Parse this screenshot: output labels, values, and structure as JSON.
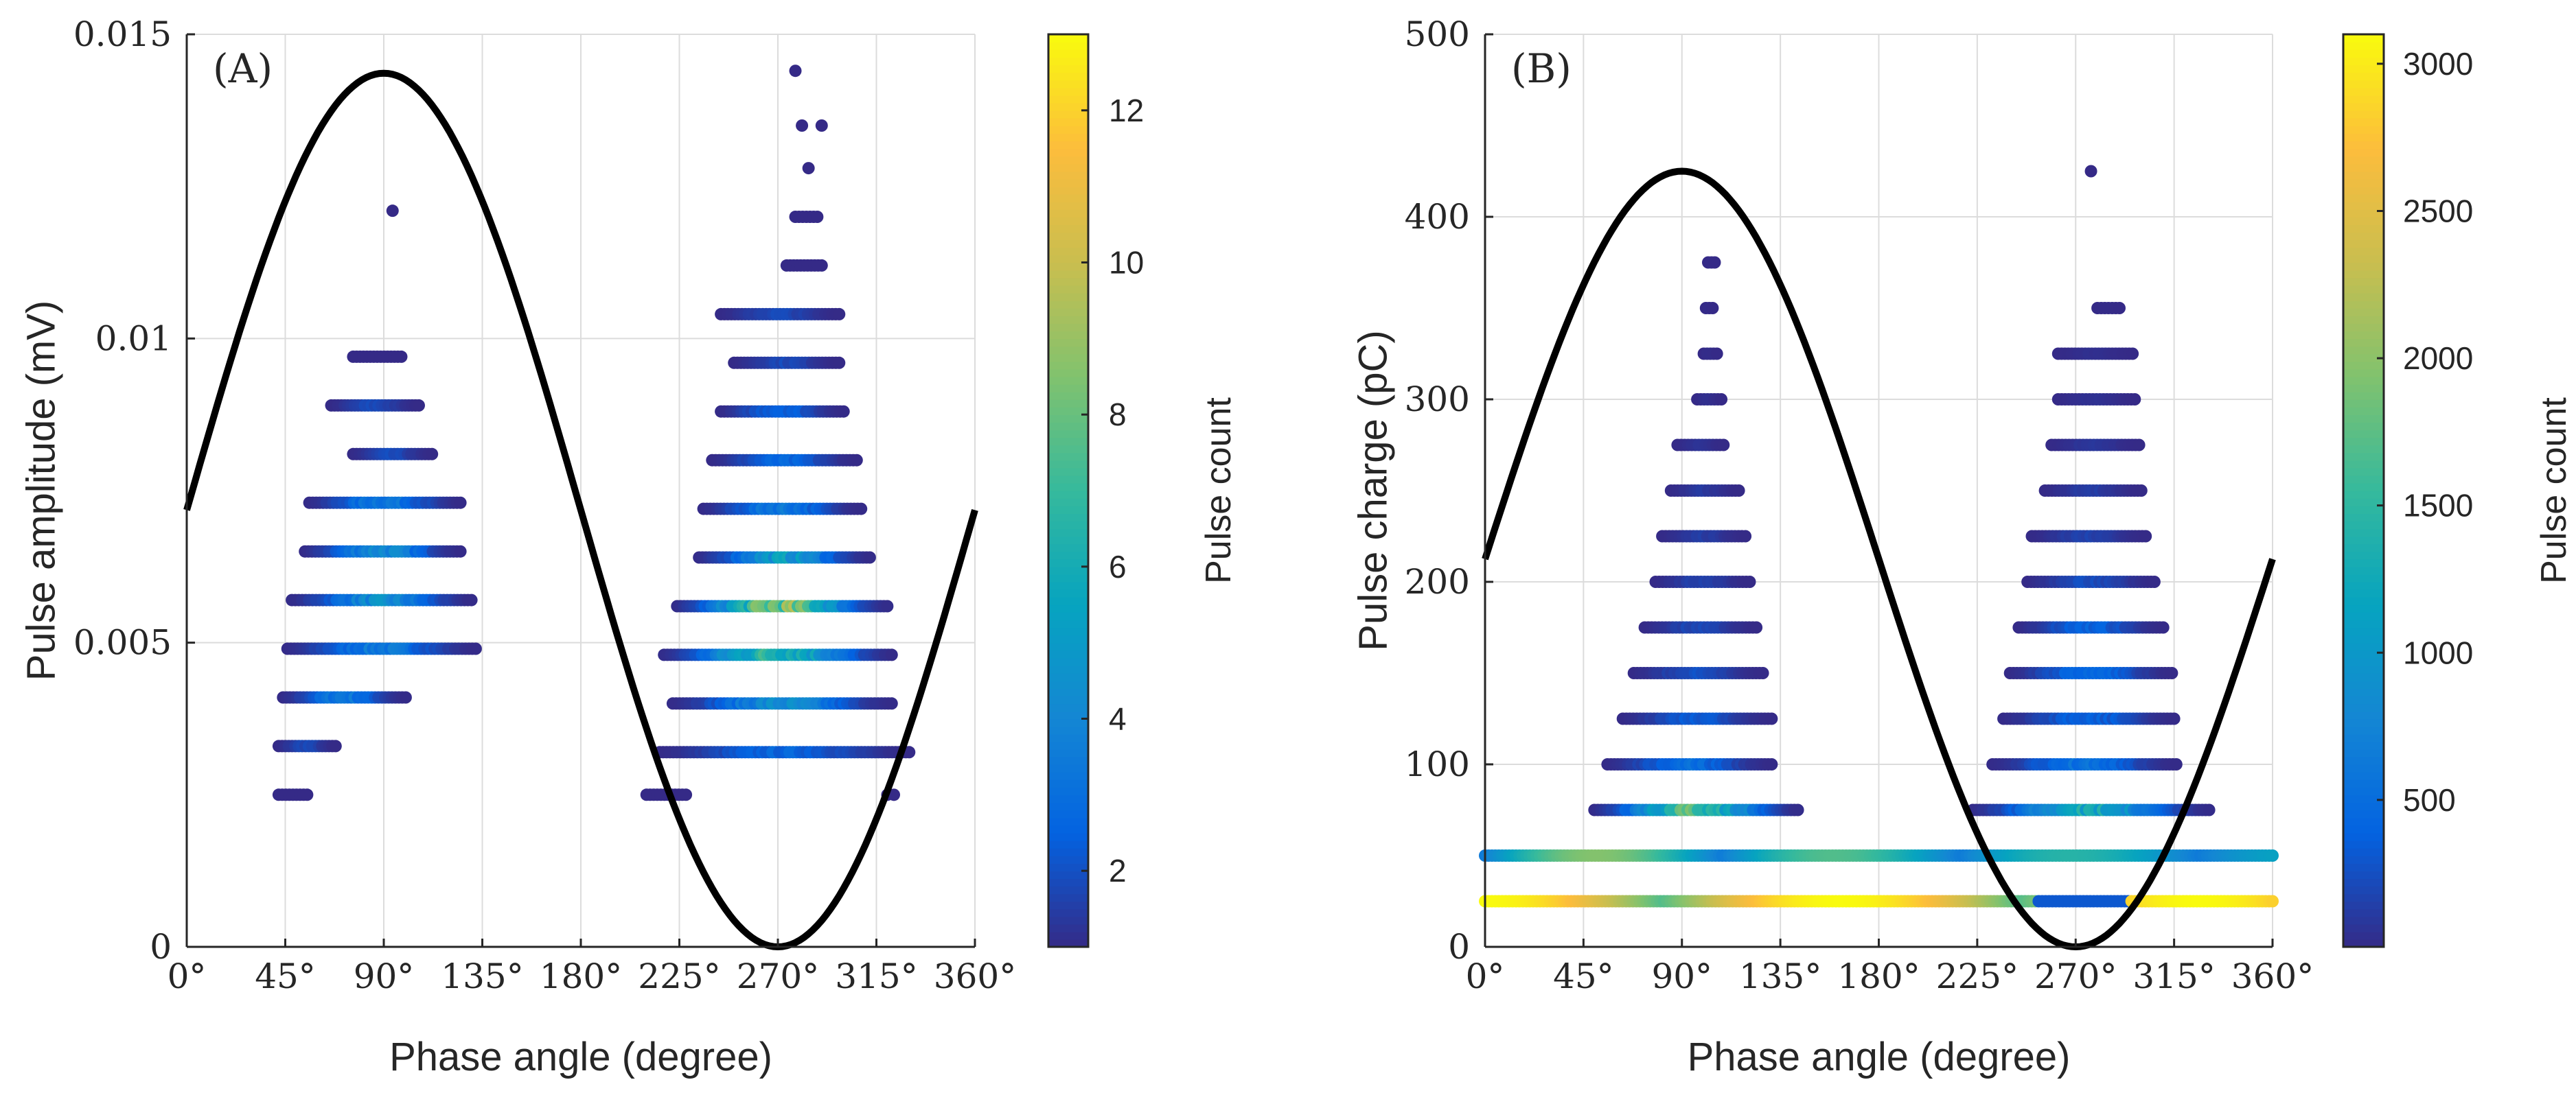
{
  "chart_data": [
    {
      "panel_label": "(A)",
      "type": "scatter",
      "xlabel": "Phase angle (degree)",
      "ylabel": "Pulse amplitude (mV)",
      "xlim": [
        0,
        360
      ],
      "ylim": [
        0,
        0.015
      ],
      "x_ticks": [
        0,
        45,
        90,
        135,
        180,
        225,
        270,
        315,
        360
      ],
      "x_tick_labels": [
        "0°",
        "45°",
        "90°",
        "135°",
        "180°",
        "225°",
        "270°",
        "315°",
        "360°"
      ],
      "y_ticks": [
        0,
        0.005,
        0.01,
        0.015
      ],
      "y_tick_labels": [
        "0",
        "0.005",
        "0.01",
        "0.015"
      ],
      "grid": true,
      "colorbar": {
        "label": "Pulse count",
        "range": [
          1,
          13
        ],
        "ticks": [
          2,
          4,
          6,
          8,
          10,
          12
        ],
        "tick_labels": [
          "2",
          "4",
          "6",
          "8",
          "10",
          "12"
        ],
        "colormap": "parula"
      },
      "reference_curve": {
        "type": "sine",
        "amplitude": 0.00718,
        "offset": 0.00718,
        "period_deg": 360
      },
      "clusters": [
        {
          "levels": [
            {
              "y": 0.0025,
              "x_min": 42,
              "x_max": 55,
              "peak": 1
            },
            {
              "y": 0.0033,
              "x_min": 42,
              "x_max": 68,
              "peak": 2
            },
            {
              "y": 0.0041,
              "x_min": 44,
              "x_max": 100,
              "peak": 4
            },
            {
              "y": 0.0049,
              "x_min": 46,
              "x_max": 132,
              "peak": 4
            },
            {
              "y": 0.0057,
              "x_min": 48,
              "x_max": 130,
              "peak": 5
            },
            {
              "y": 0.0065,
              "x_min": 54,
              "x_max": 125,
              "peak": 5
            },
            {
              "y": 0.0073,
              "x_min": 56,
              "x_max": 125,
              "peak": 4
            },
            {
              "y": 0.0081,
              "x_min": 76,
              "x_max": 112,
              "peak": 2
            },
            {
              "y": 0.0089,
              "x_min": 66,
              "x_max": 106,
              "peak": 2
            },
            {
              "y": 0.0097,
              "x_min": 76,
              "x_max": 98,
              "peak": 1
            }
          ],
          "outliers": [
            {
              "x": 94,
              "y": 0.0121
            }
          ]
        },
        {
          "levels": [
            {
              "y": 0.0025,
              "x_min": 210,
              "x_max": 228,
              "peak": 1
            },
            {
              "y": 0.0032,
              "x_min": 216,
              "x_max": 330,
              "peak": 3
            },
            {
              "y": 0.004,
              "x_min": 222,
              "x_max": 322,
              "peak": 5
            },
            {
              "y": 0.0048,
              "x_min": 218,
              "x_max": 322,
              "peak": 8
            },
            {
              "y": 0.0056,
              "x_min": 224,
              "x_max": 320,
              "peak": 10
            },
            {
              "y": 0.0064,
              "x_min": 234,
              "x_max": 312,
              "peak": 6
            },
            {
              "y": 0.0072,
              "x_min": 236,
              "x_max": 308,
              "peak": 4
            },
            {
              "y": 0.008,
              "x_min": 240,
              "x_max": 306,
              "peak": 3
            },
            {
              "y": 0.0088,
              "x_min": 244,
              "x_max": 300,
              "peak": 3
            },
            {
              "y": 0.0096,
              "x_min": 250,
              "x_max": 298,
              "peak": 2
            },
            {
              "y": 0.0104,
              "x_min": 244,
              "x_max": 298,
              "peak": 2
            },
            {
              "y": 0.0112,
              "x_min": 274,
              "x_max": 290,
              "peak": 1
            },
            {
              "y": 0.012,
              "x_min": 278,
              "x_max": 288,
              "peak": 1
            }
          ],
          "outliers": [
            {
              "x": 278,
              "y": 0.0144
            },
            {
              "x": 281,
              "y": 0.0135
            },
            {
              "x": 290,
              "y": 0.0135
            },
            {
              "x": 284,
              "y": 0.0128
            },
            {
              "x": 320,
              "y": 0.0025
            },
            {
              "x": 323,
              "y": 0.0025
            }
          ]
        }
      ]
    },
    {
      "panel_label": "(B)",
      "type": "scatter",
      "xlabel": "Phase angle (degree)",
      "ylabel": "Pulse charge (pC)",
      "xlim": [
        0,
        360
      ],
      "ylim": [
        0,
        500
      ],
      "x_ticks": [
        0,
        45,
        90,
        135,
        180,
        225,
        270,
        315,
        360
      ],
      "x_tick_labels": [
        "0°",
        "45°",
        "90°",
        "135°",
        "180°",
        "225°",
        "270°",
        "315°",
        "360°"
      ],
      "y_ticks": [
        0,
        100,
        200,
        300,
        400,
        500
      ],
      "y_tick_labels": [
        "0",
        "100",
        "200",
        "300",
        "400",
        "500"
      ],
      "grid": true,
      "colorbar": {
        "label": "Pulse count",
        "range": [
          1,
          3100
        ],
        "ticks": [
          500,
          1000,
          1500,
          2000,
          2500,
          3000
        ],
        "tick_labels": [
          "500",
          "1000",
          "1500",
          "2000",
          "2500",
          "3000"
        ],
        "colormap": "parula"
      },
      "reference_curve": {
        "type": "sine",
        "amplitude": 212.5,
        "offset": 212.5,
        "period_deg": 360
      },
      "clusters": [
        {
          "levels": [
            {
              "y": 25,
              "x_min": 0,
              "x_max": 360,
              "peak": 3100,
              "profile": "band-low"
            },
            {
              "y": 50,
              "x_min": 0,
              "x_max": 360,
              "peak": 2600,
              "profile": "band-high"
            },
            {
              "y": 75,
              "x_min": 50,
              "x_max": 143,
              "peak": 2000
            },
            {
              "y": 100,
              "x_min": 56,
              "x_max": 131,
              "peak": 600
            },
            {
              "y": 125,
              "x_min": 63,
              "x_max": 131,
              "peak": 400
            },
            {
              "y": 150,
              "x_min": 68,
              "x_max": 127,
              "peak": 300
            },
            {
              "y": 175,
              "x_min": 73,
              "x_max": 124,
              "peak": 250
            },
            {
              "y": 200,
              "x_min": 78,
              "x_max": 121,
              "peak": 200
            },
            {
              "y": 225,
              "x_min": 81,
              "x_max": 119,
              "peak": 150
            },
            {
              "y": 250,
              "x_min": 85,
              "x_max": 116,
              "peak": 120
            },
            {
              "y": 275,
              "x_min": 88,
              "x_max": 109,
              "peak": 80
            },
            {
              "y": 300,
              "x_min": 97,
              "x_max": 108,
              "peak": 40
            },
            {
              "y": 325,
              "x_min": 100,
              "x_max": 106,
              "peak": 20
            },
            {
              "y": 350,
              "x_min": 101,
              "x_max": 104,
              "peak": 10
            },
            {
              "y": 375,
              "x_min": 102,
              "x_max": 105,
              "peak": 5
            }
          ],
          "outliers": []
        },
        {
          "levels": [
            {
              "y": 75,
              "x_min": 223,
              "x_max": 331,
              "peak": 1500
            },
            {
              "y": 100,
              "x_min": 232,
              "x_max": 316,
              "peak": 700
            },
            {
              "y": 125,
              "x_min": 237,
              "x_max": 315,
              "peak": 500
            },
            {
              "y": 150,
              "x_min": 240,
              "x_max": 314,
              "peak": 600
            },
            {
              "y": 175,
              "x_min": 244,
              "x_max": 310,
              "peak": 500
            },
            {
              "y": 200,
              "x_min": 248,
              "x_max": 306,
              "peak": 300
            },
            {
              "y": 225,
              "x_min": 250,
              "x_max": 302,
              "peak": 200
            },
            {
              "y": 250,
              "x_min": 256,
              "x_max": 300,
              "peak": 150
            },
            {
              "y": 275,
              "x_min": 259,
              "x_max": 299,
              "peak": 100
            },
            {
              "y": 300,
              "x_min": 262,
              "x_max": 297,
              "peak": 60
            },
            {
              "y": 325,
              "x_min": 262,
              "x_max": 296,
              "peak": 40
            },
            {
              "y": 350,
              "x_min": 280,
              "x_max": 290,
              "peak": 10
            }
          ],
          "outliers": [
            {
              "x": 277,
              "y": 425
            }
          ]
        }
      ]
    }
  ]
}
